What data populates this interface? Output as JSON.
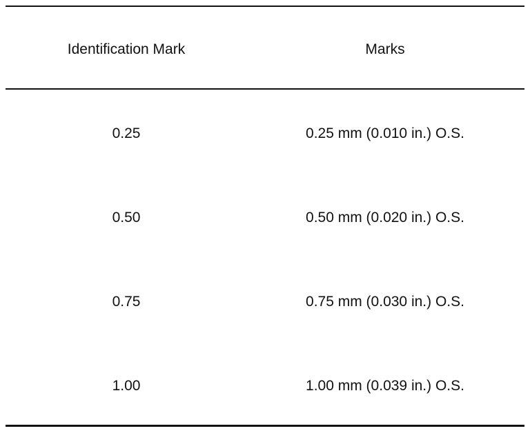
{
  "table": {
    "header": [
      "Identification Mark",
      "Marks"
    ],
    "rows": [
      [
        "0.25",
        "0.25 mm (0.010 in.) O.S."
      ],
      [
        "0.50",
        "0.50 mm (0.020 in.) O.S."
      ],
      [
        "0.75",
        "0.75 mm (0.030 in.) O.S."
      ],
      [
        "1.00",
        "1.00 mm (0.039 in.) O.S."
      ]
    ]
  }
}
